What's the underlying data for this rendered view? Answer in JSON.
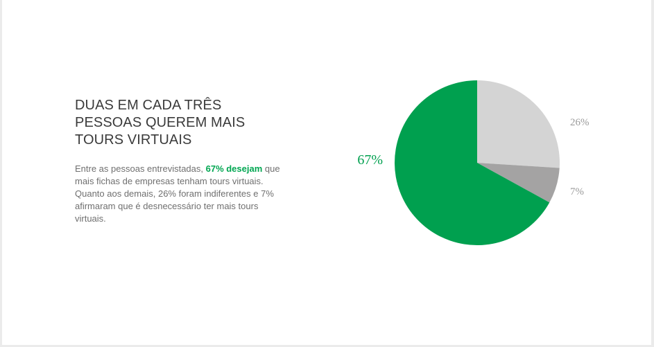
{
  "headline": {
    "line1": "DUAS EM CADA TRÊS",
    "line2": "PESSOAS QUEREM MAIS",
    "line3": "TOURS VIRTUAIS"
  },
  "body": {
    "part1": "Entre as pessoas entrevistadas, ",
    "highlight": "67% desejam",
    "part2": " que mais fichas de empresas tenham tours virtuais. Quanto aos demais, 26% foram indiferentes e 7% afirmaram que é desnecessário ter mais tours virtuais."
  },
  "colors": {
    "accent": "#00a651",
    "headline": "#3a3a3a",
    "body": "#6f6f6f"
  },
  "chart_data": {
    "type": "pie",
    "start_angle_deg": 0,
    "direction": "clockwise",
    "slices": [
      {
        "value": 26,
        "label": "26%",
        "color": "#d4d4d4",
        "label_color": "#9a9a9a"
      },
      {
        "value": 7,
        "label": "7%",
        "color": "#a4a3a3",
        "label_color": "#9a9a9a"
      },
      {
        "value": 67,
        "label": "67%",
        "color": "#00a04f",
        "label_color": "#00a04f"
      }
    ]
  }
}
